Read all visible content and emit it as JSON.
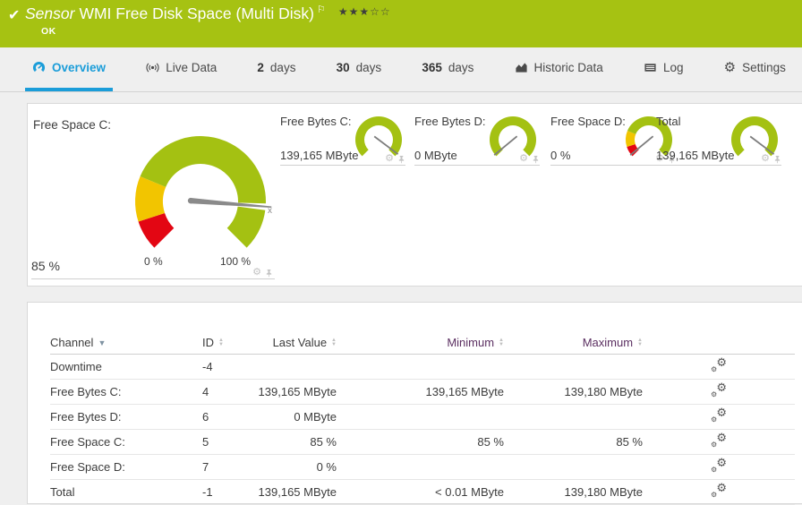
{
  "header": {
    "kind": "Sensor",
    "title": "WMI Free Disk Space (Multi Disk)",
    "status": "OK",
    "stars_filled": "★★★",
    "stars_empty": "☆☆"
  },
  "tabs": [
    {
      "label": "Overview"
    },
    {
      "label": "Live Data"
    },
    {
      "num": "2",
      "label": "days"
    },
    {
      "num": "30",
      "label": "days"
    },
    {
      "num": "365",
      "label": "days"
    },
    {
      "label": "Historic Data"
    },
    {
      "label": "Log"
    },
    {
      "label": "Settings"
    }
  ],
  "gauges": {
    "primary": {
      "label": "Free Space C:",
      "value": "85 %",
      "percent": 85,
      "scale_min": "0 %",
      "scale_max": "100 %",
      "avg_marker": "x̄"
    },
    "small": [
      {
        "label": "Free Bytes C:",
        "value": "139,165 MByte",
        "needle_pct": 97
      },
      {
        "label": "Free Bytes D:",
        "value": "0 MByte",
        "needle_pct": 2
      },
      {
        "label": "Free Space D:",
        "value": "0 %",
        "needle_pct": 2
      },
      {
        "label": "Total",
        "value": "139,165 MByte",
        "needle_pct": 97
      }
    ]
  },
  "table": {
    "headers": {
      "channel": "Channel",
      "id": "ID",
      "last": "Last Value",
      "min": "Minimum",
      "max": "Maximum"
    },
    "rows": [
      {
        "channel": "Downtime",
        "id": "-4",
        "last": "",
        "min": "",
        "max": ""
      },
      {
        "channel": "Free Bytes C:",
        "id": "4",
        "last": "139,165 MByte",
        "min": "139,165 MByte",
        "max": "139,180 MByte"
      },
      {
        "channel": "Free Bytes D:",
        "id": "6",
        "last": "0 MByte",
        "min": "",
        "max": ""
      },
      {
        "channel": "Free Space C:",
        "id": "5",
        "last": "85 %",
        "min": "85 %",
        "max": "85 %"
      },
      {
        "channel": "Free Space D:",
        "id": "7",
        "last": "0 %",
        "min": "",
        "max": ""
      },
      {
        "channel": "Total",
        "id": "-1",
        "last": "139,165 MByte",
        "min": "< 0.01 MByte",
        "max": "139,180 MByte"
      }
    ]
  },
  "colors": {
    "header_green": "#a6c212",
    "accent_blue": "#1b9dd9",
    "gauge_green": "#a4c112",
    "gauge_yellow": "#f2c500",
    "gauge_red": "#e30613",
    "header_link_purple": "#5b2f61"
  }
}
